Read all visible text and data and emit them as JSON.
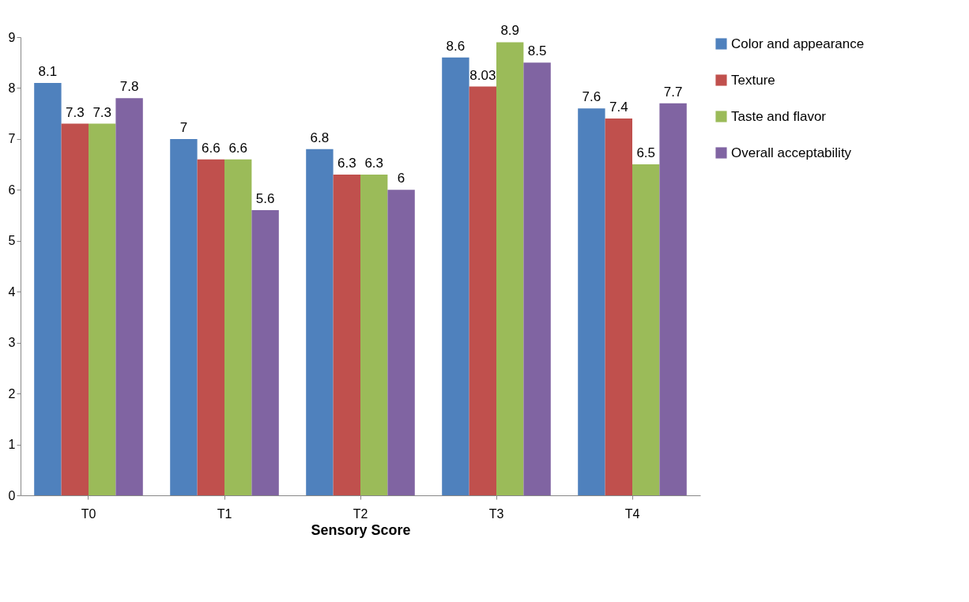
{
  "chart_data": {
    "type": "bar",
    "xlabel": "Sensory Score",
    "categories": [
      "T0",
      "T1",
      "T2",
      "T3",
      "T4"
    ],
    "series": [
      {
        "name": "Color and appearance",
        "color": "#4f81bd",
        "values": [
          8.1,
          7,
          6.8,
          8.6,
          7.6
        ]
      },
      {
        "name": "Texture",
        "color": "#c0504d",
        "values": [
          7.3,
          6.6,
          6.3,
          8.03,
          7.4
        ]
      },
      {
        "name": "Taste and flavor",
        "color": "#9bbb59",
        "values": [
          7.3,
          6.6,
          6.3,
          8.9,
          6.5
        ]
      },
      {
        "name": "Overall acceptability",
        "color": "#8064a2",
        "values": [
          7.8,
          5.6,
          6,
          8.5,
          7.7
        ]
      }
    ],
    "ylim": [
      0,
      9
    ],
    "yticks": [
      0,
      1,
      2,
      3,
      4,
      5,
      6,
      7,
      8,
      9
    ],
    "data_labels": true,
    "grid": false,
    "legend": "right"
  }
}
